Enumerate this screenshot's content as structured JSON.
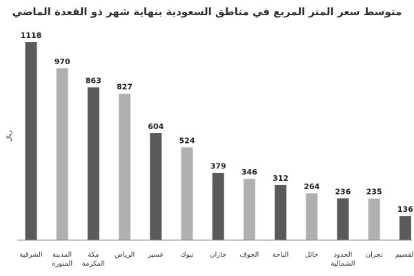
{
  "chart_data": {
    "type": "bar",
    "title": "متوسط سعر المتر المربع في مناطق السعودية بنهاية شهر ذو القعدة الماضي",
    "ylabel": "ريال",
    "ylim": [
      0,
      1200
    ],
    "grid": false,
    "categories": [
      [
        "الشرقية"
      ],
      [
        "المدينة",
        "المنورة"
      ],
      [
        "مكة",
        "المكرمة"
      ],
      [
        "الرياض"
      ],
      [
        "عسير"
      ],
      [
        "تبوك"
      ],
      [
        "جازان"
      ],
      [
        "الجوف"
      ],
      [
        "الباحة"
      ],
      [
        "حائل"
      ],
      [
        "الحدود",
        "الشمالية"
      ],
      [
        "نجران"
      ],
      [
        "القصيم"
      ]
    ],
    "values": [
      1118,
      970,
      863,
      827,
      604,
      524,
      379,
      346,
      312,
      264,
      236,
      235,
      136
    ],
    "bar_colors": [
      "#5a5a5a",
      "#b0b0b0",
      "#5a5a5a",
      "#b0b0b0",
      "#5a5a5a",
      "#b0b0b0",
      "#5a5a5a",
      "#b0b0b0",
      "#5a5a5a",
      "#b0b0b0",
      "#5a5a5a",
      "#b0b0b0",
      "#5a5a5a"
    ]
  }
}
